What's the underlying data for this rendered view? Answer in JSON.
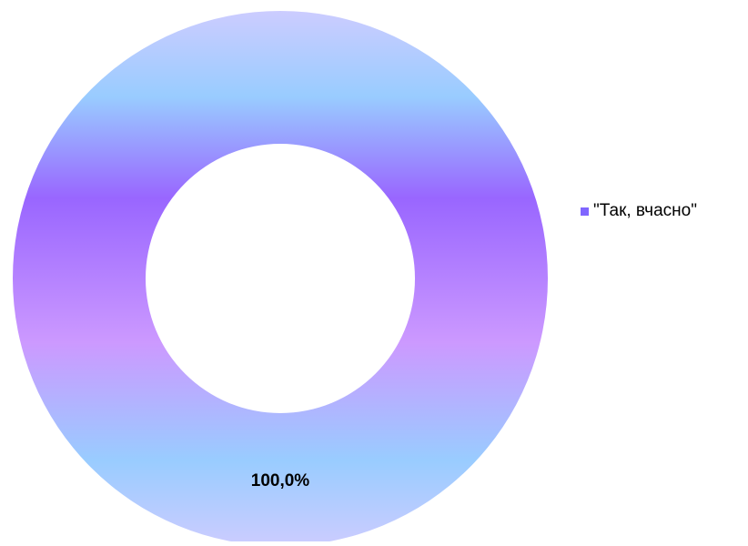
{
  "chart_data": {
    "type": "pie",
    "variant": "donut",
    "categories": [
      "\"Так, вчасно\""
    ],
    "values": [
      100.0
    ],
    "data_labels": [
      "100,0%"
    ],
    "legend_position": "right",
    "series": [
      {
        "values": [
          100.0
        ],
        "colors": [
          "#9966ff",
          "#99ccff",
          "#cc99ff",
          "#ccccff"
        ]
      }
    ]
  },
  "legend": {
    "items": [
      {
        "label": "\"Так, вчасно\"",
        "color": "#8066ff"
      }
    ]
  }
}
